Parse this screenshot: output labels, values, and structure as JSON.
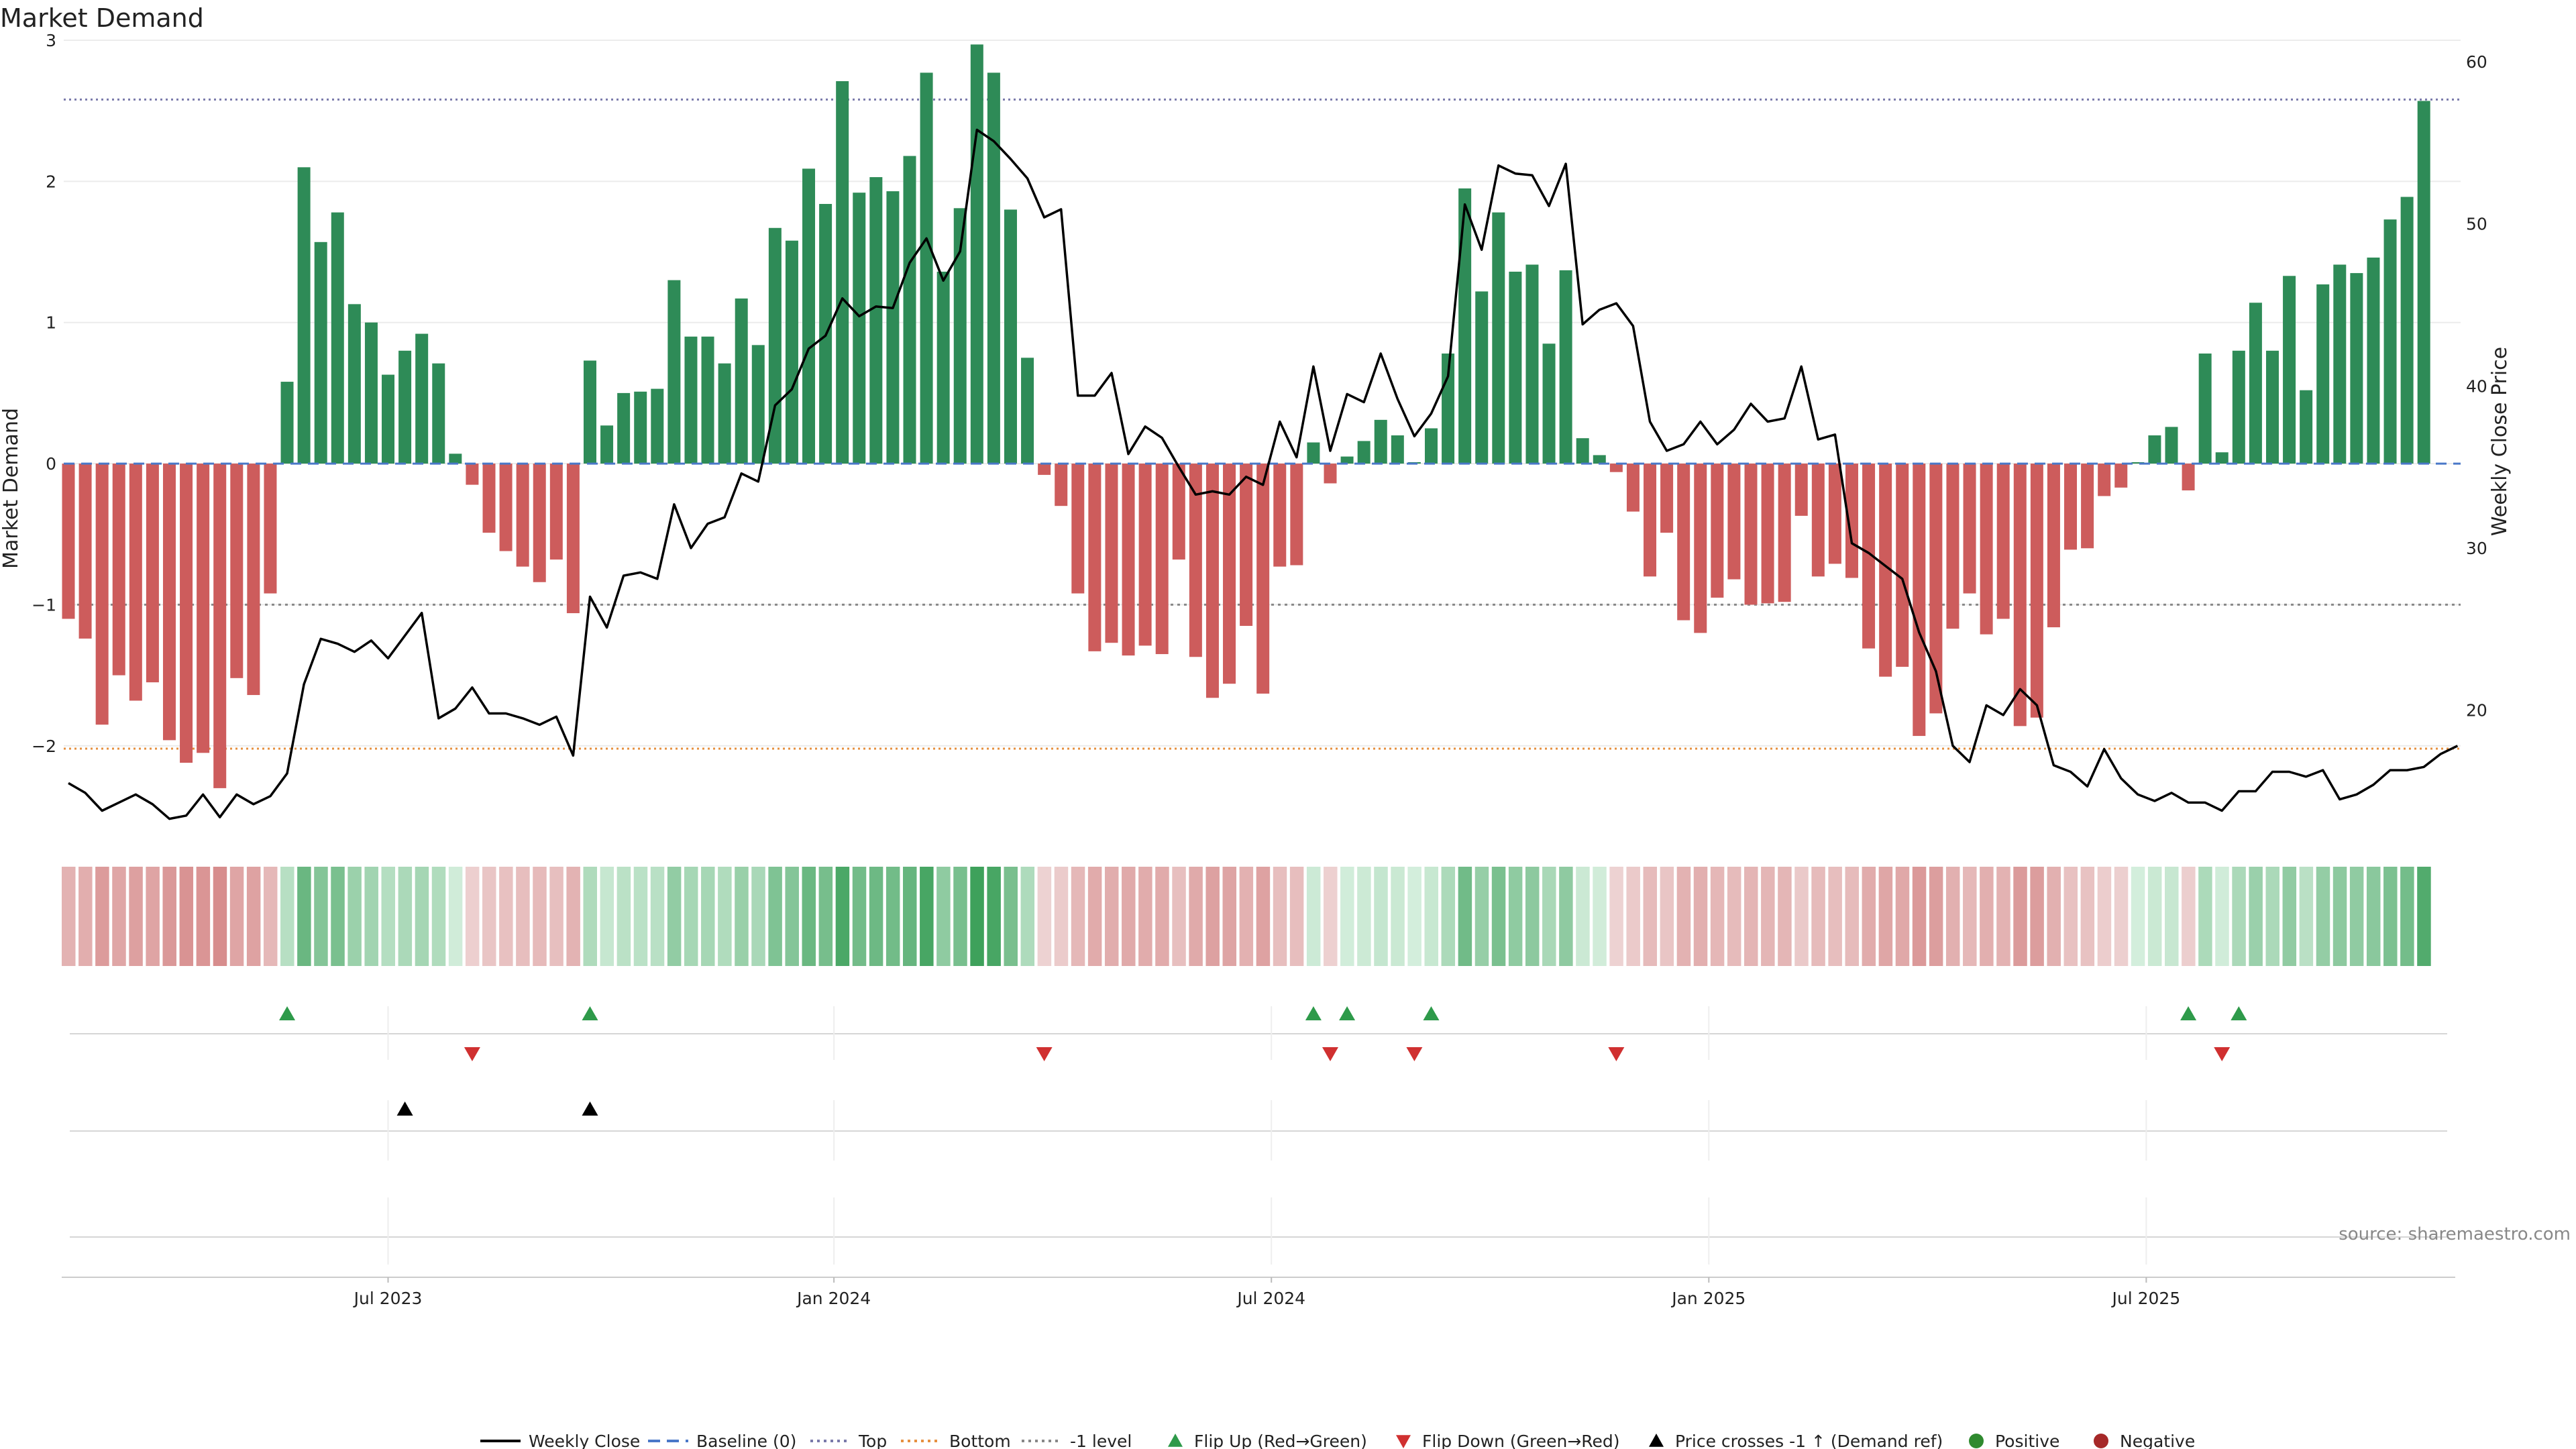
{
  "chart_data": {
    "type": "bar",
    "title": "Market Demand",
    "ylabel": "Market Demand",
    "y2label": "Weekly Close Price",
    "ylim": [
      -2.6,
      3.0
    ],
    "y2lim": [
      12,
      60
    ],
    "yticks": [
      -2,
      -1,
      0,
      1,
      2,
      3
    ],
    "y2ticks": [
      20,
      30,
      40,
      50,
      60
    ],
    "ytick_labels": [
      "−2",
      "−1",
      "0",
      "1",
      "2",
      "3"
    ],
    "y2tick_labels": [
      "20",
      "30",
      "40",
      "50",
      "60"
    ],
    "x_month_labels": [
      {
        "label": "Jul 2023",
        "week": 19
      },
      {
        "label": "Jan 2024",
        "week": 45.5
      },
      {
        "label": "Jul 2024",
        "week": 71.5
      },
      {
        "label": "Jan 2025",
        "week": 97.5
      },
      {
        "label": "Jul 2025",
        "week": 123.5
      }
    ],
    "reference_lines": {
      "top": 2.58,
      "minus_one": -1.0,
      "bottom": -2.02,
      "baseline": 0
    },
    "demand": [
      -1.1,
      -1.24,
      -1.85,
      -1.5,
      -1.68,
      -1.55,
      -1.96,
      -2.12,
      -2.05,
      -2.3,
      -1.52,
      -1.64,
      -0.92,
      0.58,
      2.1,
      1.57,
      1.78,
      1.13,
      1.0,
      0.63,
      0.8,
      0.92,
      0.71,
      0.07,
      -0.15,
      -0.49,
      -0.62,
      -0.73,
      -0.84,
      -0.68,
      -1.06,
      0.73,
      0.27,
      0.5,
      0.51,
      0.53,
      1.3,
      0.9,
      0.9,
      0.71,
      1.17,
      0.84,
      1.67,
      1.58,
      2.09,
      1.84,
      2.71,
      1.92,
      2.03,
      1.93,
      2.18,
      2.77,
      1.36,
      1.81,
      2.97,
      2.77,
      1.8,
      0.75,
      -0.08,
      -0.3,
      -0.92,
      -1.33,
      -1.27,
      -1.36,
      -1.29,
      -1.35,
      -0.68,
      -1.37,
      -1.66,
      -1.56,
      -1.15,
      -1.63,
      -0.73,
      -0.72,
      0.15,
      -0.14,
      0.05,
      0.16,
      0.31,
      0.2,
      0.01,
      0.25,
      0.78,
      1.95,
      1.22,
      1.78,
      1.36,
      1.41,
      0.85,
      1.37,
      0.18,
      0.06,
      -0.06,
      -0.34,
      -0.8,
      -0.49,
      -1.11,
      -1.2,
      -0.95,
      -0.82,
      -1.0,
      -0.99,
      -0.98,
      -0.37,
      -0.8,
      -0.71,
      -0.81,
      -1.31,
      -1.51,
      -1.44,
      -1.93,
      -1.77,
      -1.17,
      -0.92,
      -1.21,
      -1.1,
      -1.86,
      -1.8,
      -1.16,
      -0.61,
      -0.6,
      -0.23,
      -0.17,
      0.01,
      0.2,
      0.26,
      -0.19,
      0.78,
      0.08,
      0.8,
      1.14,
      0.8,
      1.33,
      0.52,
      1.27,
      1.41,
      1.35,
      1.46,
      1.73,
      1.89,
      2.57
    ],
    "price": [
      15.5,
      14.9,
      13.8,
      14.3,
      14.8,
      14.2,
      13.3,
      13.5,
      14.8,
      13.4,
      14.8,
      14.2,
      14.7,
      16.1,
      21.6,
      24.4,
      24.1,
      23.6,
      24.3,
      23.2,
      24.6,
      26.0,
      19.5,
      20.1,
      21.4,
      19.8,
      19.8,
      19.5,
      19.1,
      19.6,
      17.2,
      27.0,
      25.1,
      28.3,
      28.5,
      28.1,
      32.7,
      30.0,
      31.5,
      31.9,
      34.6,
      34.1,
      38.8,
      39.8,
      42.3,
      43.1,
      45.4,
      44.3,
      44.9,
      44.8,
      47.6,
      49.1,
      46.5,
      48.3,
      55.8,
      55.1,
      54.0,
      52.8,
      50.4,
      50.9,
      39.4,
      39.4,
      40.8,
      35.8,
      37.5,
      36.8,
      35.0,
      33.3,
      33.5,
      33.3,
      34.4,
      33.9,
      37.8,
      35.6,
      41.2,
      36.0,
      39.5,
      39.0,
      42.0,
      39.2,
      36.9,
      38.3,
      40.6,
      51.2,
      48.4,
      53.6,
      53.1,
      53.0,
      51.1,
      53.7,
      43.8,
      44.7,
      45.1,
      43.7,
      37.8,
      36.0,
      36.4,
      37.8,
      36.4,
      37.3,
      38.9,
      37.8,
      38.0,
      41.2,
      36.7,
      37.0,
      30.3,
      29.7,
      28.9,
      28.1,
      24.8,
      22.4,
      17.8,
      16.8,
      20.3,
      19.7,
      21.3,
      20.3,
      16.6,
      16.2,
      15.3,
      17.6,
      15.8,
      14.8,
      14.4,
      14.9,
      14.3,
      14.3,
      13.8,
      15.0,
      15.0,
      16.2,
      16.2,
      15.9,
      16.3,
      14.5,
      14.8,
      15.4,
      16.3,
      16.3,
      16.5,
      17.3,
      17.8
    ]
  },
  "legend": [
    "Weekly Close",
    "Baseline (0)",
    "Top",
    "Bottom",
    "-1 level",
    "Flip Up (Red→Green)",
    "Flip Down (Green→Red)",
    "Price crosses -1 ↑ (Demand ref)",
    "Positive",
    "Negative"
  ],
  "markers": {
    "flip_up_weeks": [
      13,
      31,
      74,
      76,
      81,
      126,
      129
    ],
    "flip_down_weeks": [
      24,
      58,
      75,
      80,
      92,
      128
    ],
    "price_cross_weeks": [
      20,
      31
    ]
  },
  "source": "source: sharemaestro.com",
  "colors": {
    "positive": "#2e8b57",
    "negative": "#cd5c5c",
    "price_line": "#000000",
    "baseline": "#4a78c8",
    "top": "#7a7aaa",
    "bottom": "#e69040",
    "minus_one": "#888888",
    "flip_up": "#2e9a4a",
    "flip_down": "#d03030",
    "legend_positive_dot": "#2f8a2f",
    "legend_negative_dot": "#a62828"
  }
}
